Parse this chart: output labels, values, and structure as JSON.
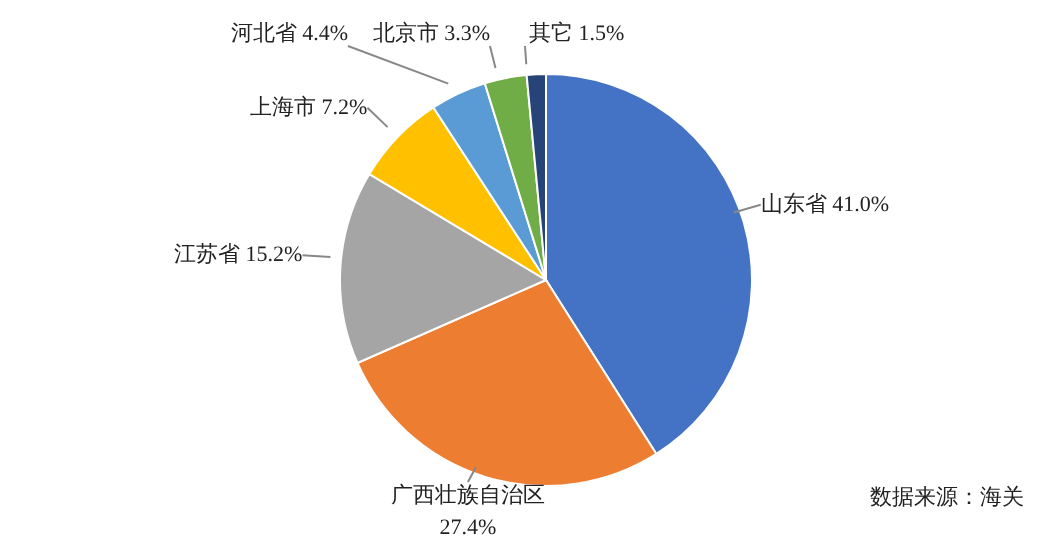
{
  "chart_data": {
    "type": "pie",
    "categories": [
      "山东省",
      "广西壮族自治区",
      "江苏省",
      "上海市",
      "河北省",
      "北京市",
      "其它"
    ],
    "values": [
      41.0,
      27.4,
      15.2,
      7.2,
      4.4,
      3.3,
      1.5
    ],
    "value_labels": [
      "41.0%",
      "27.4%",
      "15.2%",
      "7.2%",
      "4.4%",
      "3.3%",
      "1.5%"
    ],
    "colors": [
      "#4472c4",
      "#ed7d31",
      "#a5a5a5",
      "#ffc000",
      "#5b9bd5",
      "#70ad47",
      "#264478"
    ],
    "legend": false,
    "annotations": [
      "数据来源：海关"
    ]
  }
}
